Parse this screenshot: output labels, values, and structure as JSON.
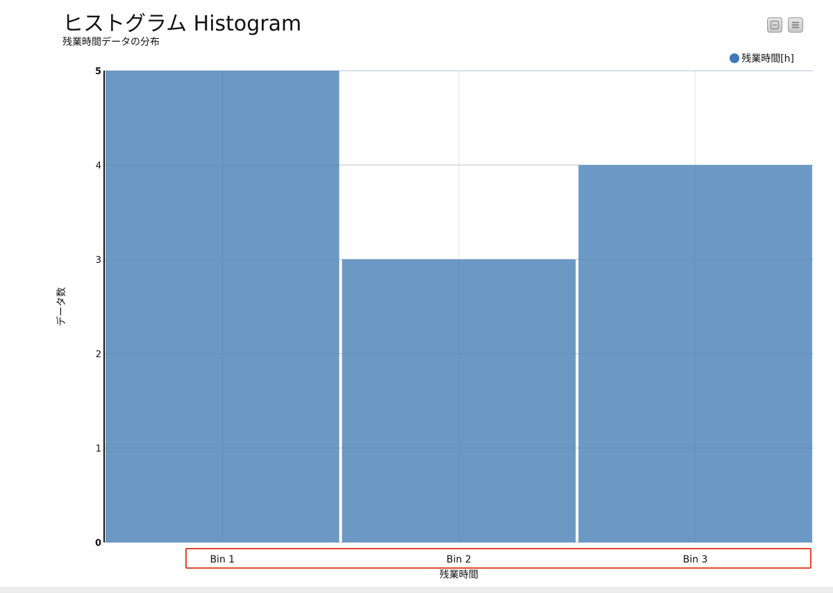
{
  "header": {
    "title": "ヒストグラム Histogram",
    "subtitle": "残業時間データの分布"
  },
  "controls": {
    "collapse_icon": "collapse-icon",
    "menu_icon": "menu-icon"
  },
  "colors": {
    "bar": "#6c98c4",
    "legend_dot": "#3f78b8",
    "grid": "#e2e2e2",
    "axis": "#111111",
    "highlight": "#e0472c"
  },
  "chart_data": {
    "type": "bar",
    "categories": [
      "Bin 1",
      "Bin 2",
      "Bin 3"
    ],
    "series": [
      {
        "name": "残業時間[h]",
        "values": [
          5,
          3,
          4
        ]
      }
    ],
    "title": "ヒストグラム Histogram",
    "subtitle": "残業時間データの分布",
    "xlabel": "残業時間",
    "ylabel": "データ数",
    "ylim": [
      0,
      5
    ],
    "yticks": [
      0,
      1,
      2,
      3,
      4,
      5
    ],
    "grid": true,
    "legend": "top-right"
  }
}
